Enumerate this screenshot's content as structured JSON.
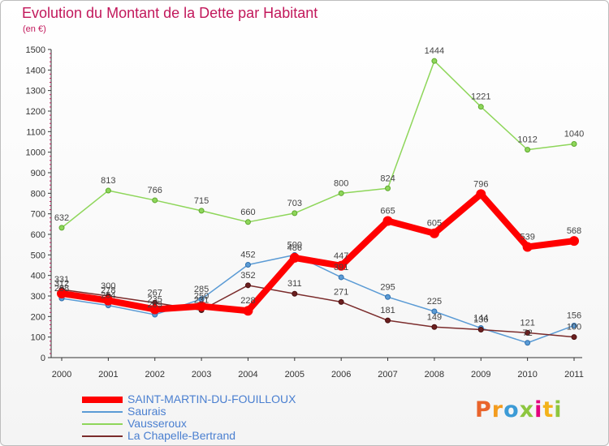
{
  "page": {
    "title": "Evolution du Montant de la Dette par Habitant",
    "subtitle": "(en €)"
  },
  "logo": {
    "letters": [
      "P",
      "r",
      "o",
      "x",
      "i",
      "t",
      "i"
    ],
    "colors": [
      "#e9642b",
      "#f39c1f",
      "#3c9bd6",
      "#8dc63f",
      "#e3007e",
      "#f3b21a",
      "#8dc63f"
    ]
  },
  "chart_data": {
    "type": "line",
    "title": "Evolution du Montant de la Dette par Habitant",
    "ylabel": "(en €)",
    "xlabel": "",
    "ylim": [
      0,
      1500
    ],
    "yticks": [
      0,
      100,
      200,
      300,
      400,
      500,
      600,
      700,
      800,
      900,
      1000,
      1100,
      1200,
      1300,
      1400,
      1500
    ],
    "grid": false,
    "legend_position": "bottom",
    "categories": [
      "2000",
      "2001",
      "2002",
      "2003",
      "2004",
      "2005",
      "2006",
      "2007",
      "2008",
      "2009",
      "2010",
      "2011"
    ],
    "series": [
      {
        "name": "SAINT-MARTIN-DU-FOUILLOUX",
        "color": "#ff0000",
        "values": [
          312,
          278,
          235,
          250,
          228,
          486,
          447,
          665,
          605,
          796,
          539,
          568
        ]
      },
      {
        "name": "Saurais",
        "color": "#5b9bd5",
        "values": [
          288,
          254,
          209,
          285,
          452,
          500,
          391,
          295,
          225,
          144,
          72,
          156
        ]
      },
      {
        "name": "Vausseroux",
        "color": "#8ed65a",
        "values": [
          632,
          813,
          766,
          715,
          660,
          703,
          800,
          824,
          1444,
          1221,
          1012,
          1040
        ]
      },
      {
        "name": "La Chapelle-Bertrand",
        "color": "#7b2c2c",
        "values": [
          331,
          300,
          267,
          231,
          352,
          311,
          271,
          181,
          149,
          136,
          121,
          100
        ]
      }
    ]
  }
}
